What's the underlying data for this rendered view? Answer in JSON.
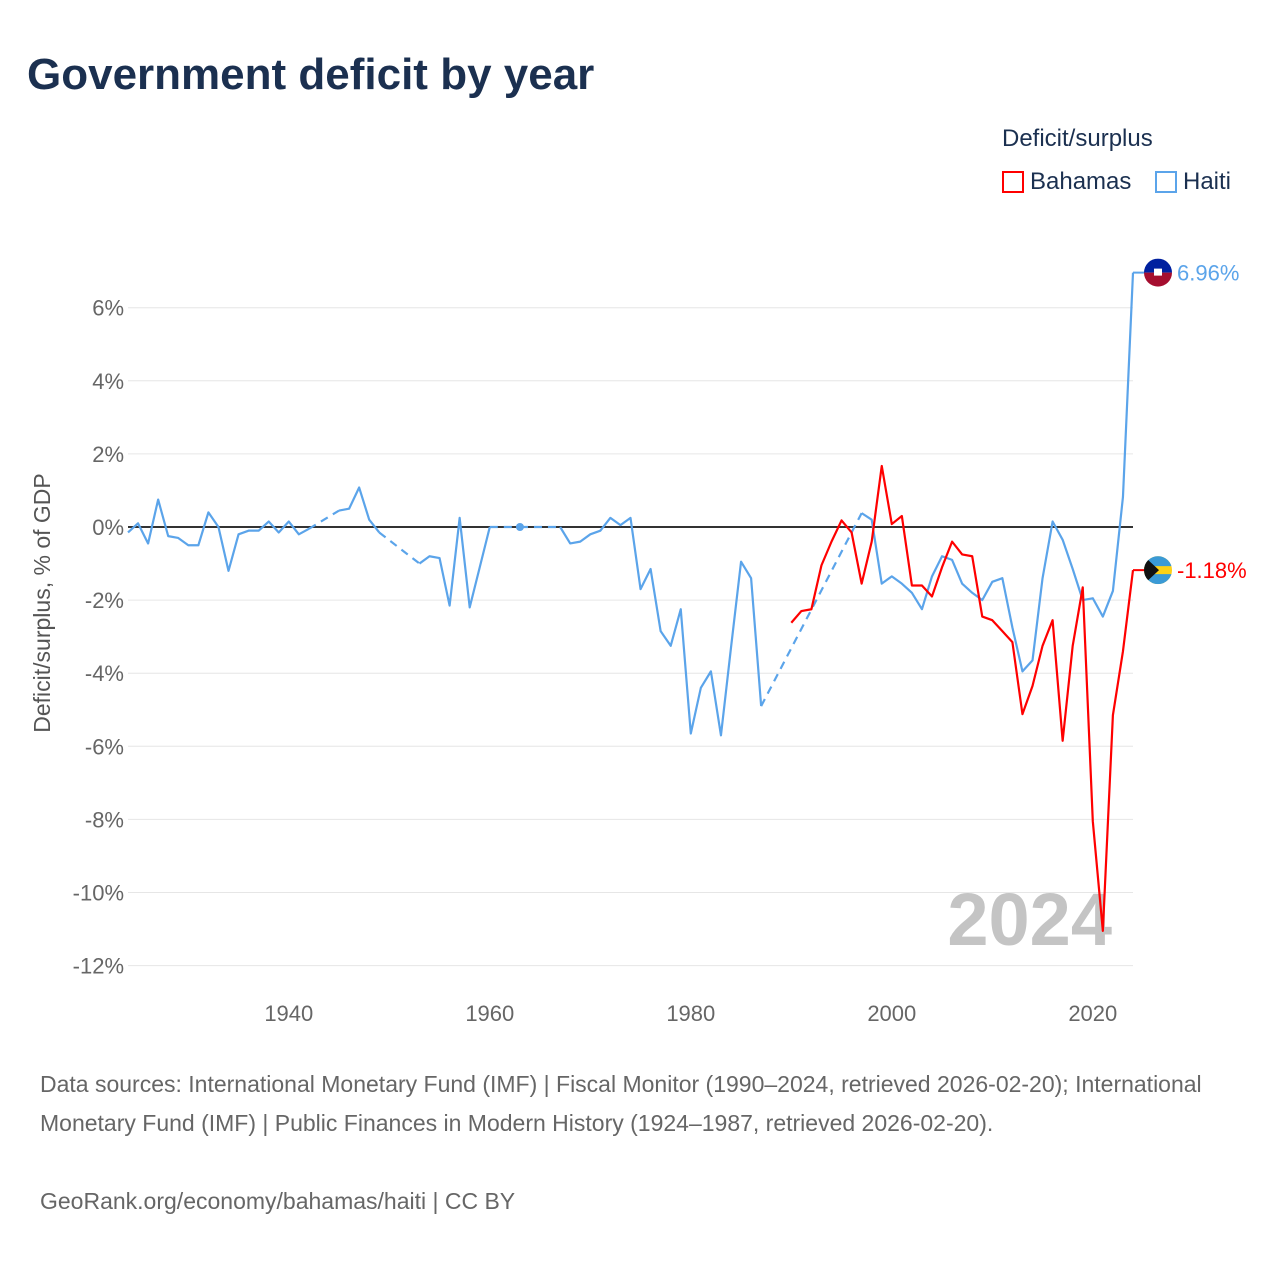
{
  "title": "Government deficit by year",
  "legend": {
    "title": "Deficit/surplus",
    "items": [
      {
        "name": "Bahamas",
        "color": "#ff0000"
      },
      {
        "name": "Haiti",
        "color": "#5ba4ea"
      }
    ]
  },
  "watermark_year": "2024",
  "chart_data": {
    "type": "line",
    "title": "Government deficit by year",
    "xlabel": "",
    "ylabel": "Deficit/surplus, % of GDP",
    "xlim": [
      1924,
      2024
    ],
    "ylim": [
      -12.5,
      7
    ],
    "xticks": [
      1940,
      1960,
      1980,
      2000,
      2020
    ],
    "yticks": [
      6,
      4,
      2,
      0,
      -2,
      -4,
      -6,
      -8,
      -10,
      -12
    ],
    "ytick_labels": [
      "6%",
      "4%",
      "2%",
      "0%",
      "-2%",
      "-4%",
      "-6%",
      "-8%",
      "-10%",
      "-12%"
    ],
    "grid": true,
    "legend_position": "top-right",
    "series": [
      {
        "name": "Haiti",
        "color": "#5ba4ea",
        "end_label": "6.96%",
        "points": [
          [
            1924,
            -0.15
          ],
          [
            1925,
            0.1
          ],
          [
            1926,
            -0.45
          ],
          [
            1927,
            0.75
          ],
          [
            1928,
            -0.25
          ],
          [
            1929,
            -0.3
          ],
          [
            1930,
            -0.5
          ],
          [
            1931,
            -0.5
          ],
          [
            1932,
            0.4
          ],
          [
            1933,
            0
          ],
          [
            1934,
            -1.2
          ],
          [
            1935,
            -0.2
          ],
          [
            1936,
            -0.1
          ],
          [
            1937,
            -0.1
          ],
          [
            1938,
            0.15
          ],
          [
            1939,
            -0.15
          ],
          [
            1940,
            0.15
          ],
          [
            1941,
            -0.2
          ],
          [
            1942,
            -0.05
          ],
          [
            1945,
            0.45
          ],
          [
            1946,
            0.5
          ],
          [
            1947,
            1.08
          ],
          [
            1948,
            0.2
          ],
          [
            1949,
            -0.15
          ],
          [
            1953,
            -1.0
          ],
          [
            1954,
            -0.8
          ],
          [
            1955,
            -0.85
          ],
          [
            1956,
            -2.15
          ],
          [
            1957,
            0.25
          ],
          [
            1958,
            -2.2
          ],
          [
            1959,
            -1.1
          ],
          [
            1960,
            0
          ],
          [
            1963,
            0
          ],
          [
            1967,
            0
          ],
          [
            1968,
            -0.45
          ],
          [
            1969,
            -0.4
          ],
          [
            1970,
            -0.2
          ],
          [
            1971,
            -0.1
          ],
          [
            1972,
            0.25
          ],
          [
            1973,
            0.05
          ],
          [
            1974,
            0.25
          ],
          [
            1975,
            -1.7
          ],
          [
            1976,
            -1.15
          ],
          [
            1977,
            -2.85
          ],
          [
            1978,
            -3.25
          ],
          [
            1979,
            -2.25
          ],
          [
            1980,
            -5.65
          ],
          [
            1981,
            -4.4
          ],
          [
            1982,
            -3.95
          ],
          [
            1983,
            -5.7
          ],
          [
            1984,
            -3.3
          ],
          [
            1985,
            -0.95
          ],
          [
            1986,
            -1.4
          ],
          [
            1987,
            -4.9
          ],
          [
            1997,
            0.38
          ],
          [
            1998,
            0.2
          ],
          [
            1999,
            -1.55
          ],
          [
            2000,
            -1.35
          ],
          [
            2001,
            -1.55
          ],
          [
            2002,
            -1.8
          ],
          [
            2003,
            -2.25
          ],
          [
            2004,
            -1.35
          ],
          [
            2005,
            -0.8
          ],
          [
            2006,
            -0.9
          ],
          [
            2007,
            -1.55
          ],
          [
            2008,
            -1.8
          ],
          [
            2009,
            -2.0
          ],
          [
            2010,
            -1.5
          ],
          [
            2011,
            -1.4
          ],
          [
            2012,
            -2.75
          ],
          [
            2013,
            -3.95
          ],
          [
            2014,
            -3.65
          ],
          [
            2015,
            -1.4
          ],
          [
            2016,
            0.15
          ],
          [
            2017,
            -0.35
          ],
          [
            2018,
            -1.15
          ],
          [
            2019,
            -2.0
          ],
          [
            2020,
            -1.95
          ],
          [
            2021,
            -2.45
          ],
          [
            2022,
            -1.75
          ],
          [
            2023,
            0.82
          ],
          [
            2024,
            6.96
          ]
        ]
      },
      {
        "name": "Bahamas",
        "color": "#ff0000",
        "end_label": "-1.18%",
        "points": [
          [
            1990,
            -2.62
          ],
          [
            1991,
            -2.3
          ],
          [
            1992,
            -2.25
          ],
          [
            1993,
            -1.05
          ],
          [
            1994,
            -0.4
          ],
          [
            1995,
            0.18
          ],
          [
            1996,
            -0.15
          ],
          [
            1997,
            -1.55
          ],
          [
            1998,
            -0.4
          ],
          [
            1999,
            1.67
          ],
          [
            2000,
            0.08
          ],
          [
            2001,
            0.3
          ],
          [
            2002,
            -1.6
          ],
          [
            2003,
            -1.6
          ],
          [
            2004,
            -1.9
          ],
          [
            2005,
            -1.1
          ],
          [
            2006,
            -0.4
          ],
          [
            2007,
            -0.75
          ],
          [
            2008,
            -0.8
          ],
          [
            2009,
            -2.45
          ],
          [
            2010,
            -2.55
          ],
          [
            2011,
            -2.85
          ],
          [
            2012,
            -3.15
          ],
          [
            2013,
            -5.12
          ],
          [
            2014,
            -4.35
          ],
          [
            2015,
            -3.25
          ],
          [
            2016,
            -2.55
          ],
          [
            2017,
            -5.85
          ],
          [
            2018,
            -3.25
          ],
          [
            2019,
            -1.65
          ],
          [
            2020,
            -8.05
          ],
          [
            2021,
            -11.05
          ],
          [
            2022,
            -5.15
          ],
          [
            2023,
            -3.4
          ],
          [
            2024,
            -1.18
          ]
        ]
      }
    ]
  },
  "footer": {
    "sources": "Data sources: International Monetary Fund (IMF) | Fiscal Monitor (1990–2024, retrieved 2026-02-20); International Monetary Fund (IMF) | Public Finances in Modern History (1924–1987, retrieved 2026-02-20).",
    "credit": "GeoRank.org/economy/bahamas/haiti | CC BY"
  }
}
